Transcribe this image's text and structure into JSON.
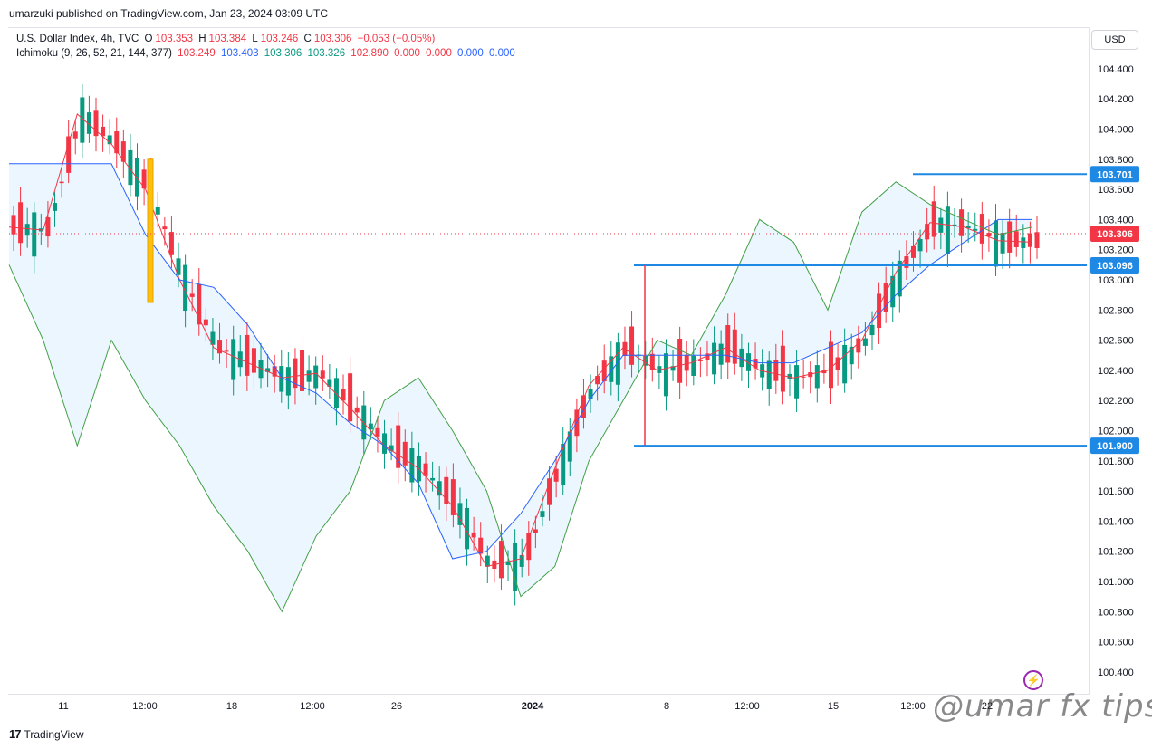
{
  "header": {
    "publisher": "umarzuki published on TradingView.com, Jan 23, 2024 03:09 UTC"
  },
  "legend": {
    "symbol": "U.S. Dollar Index, 4h, TVC",
    "open_label": "O",
    "open": "103.353",
    "high_label": "H",
    "high": "103.384",
    "low_label": "L",
    "low": "103.246",
    "close_label": "C",
    "close": "103.306",
    "change": "−0.053 (−0.05%)",
    "indicator": "Ichimoku (9, 26, 52, 21, 144, 377)",
    "ind_values": [
      "103.249",
      "103.403",
      "103.306",
      "103.326",
      "102.890",
      "0.000",
      "0.000",
      "0.000",
      "0.000"
    ]
  },
  "currency_button": "USD",
  "branding": {
    "tv_mark": "17",
    "tv_name": "TradingView",
    "watermark": "@umar fx tips"
  },
  "colors": {
    "bull": "#089981",
    "bear": "#f23645",
    "conversion": "#f23645",
    "base": "#2962ff",
    "lagging": "#43a047",
    "cloud": "#e3f2fd",
    "level": "#1e88e5",
    "highlight": "#ffc107"
  },
  "chart_data": {
    "type": "line",
    "title": "U.S. Dollar Index, 4h, TVC",
    "ylim": [
      100.3,
      104.6
    ],
    "y_ticks": [
      100.4,
      100.6,
      100.8,
      101.0,
      101.2,
      101.4,
      101.6,
      101.8,
      102.0,
      102.2,
      102.4,
      102.6,
      102.8,
      103.0,
      103.2,
      103.4,
      103.6,
      103.8,
      104.0,
      104.2,
      104.4
    ],
    "x_ticks": [
      "11",
      "12:00",
      "18",
      "12:00",
      "26",
      "2024",
      "8",
      "12:00",
      "15",
      "12:00",
      "22"
    ],
    "last_price": 103.306,
    "horizontal_levels": [
      {
        "value": 103.701,
        "label": "103.701"
      },
      {
        "value": 103.096,
        "label": "103.096"
      },
      {
        "value": 101.9,
        "label": "101.900"
      }
    ],
    "series": [
      {
        "name": "Conversion Line",
        "values": [
          103.35,
          103.33,
          104.1,
          103.9,
          103.6,
          103.0,
          102.55,
          102.45,
          102.35,
          102.38,
          102.15,
          101.9,
          101.75,
          101.5,
          101.1,
          101.15,
          101.75,
          102.3,
          102.55,
          102.4,
          102.45,
          102.55,
          102.4,
          102.35,
          102.4,
          102.6,
          103.05,
          103.38,
          103.35,
          103.26,
          103.25
        ]
      },
      {
        "name": "Base Line",
        "values": [
          103.77,
          103.77,
          103.77,
          103.77,
          103.3,
          103.0,
          102.95,
          102.7,
          102.35,
          102.25,
          102.05,
          101.9,
          101.65,
          101.15,
          101.2,
          101.45,
          101.8,
          102.2,
          102.5,
          102.5,
          102.5,
          102.5,
          102.45,
          102.45,
          102.55,
          102.65,
          102.9,
          103.1,
          103.25,
          103.4,
          103.4
        ]
      },
      {
        "name": "Lagging Span",
        "values": [
          103.1,
          102.6,
          101.9,
          102.6,
          102.2,
          101.9,
          101.5,
          101.2,
          100.8,
          101.3,
          101.6,
          102.2,
          102.35,
          102.0,
          101.6,
          100.9,
          101.1,
          101.8,
          102.2,
          102.6,
          102.5,
          102.9,
          103.4,
          103.25,
          102.8,
          103.45,
          103.65,
          103.5,
          103.4,
          103.3,
          103.35
        ]
      }
    ]
  }
}
